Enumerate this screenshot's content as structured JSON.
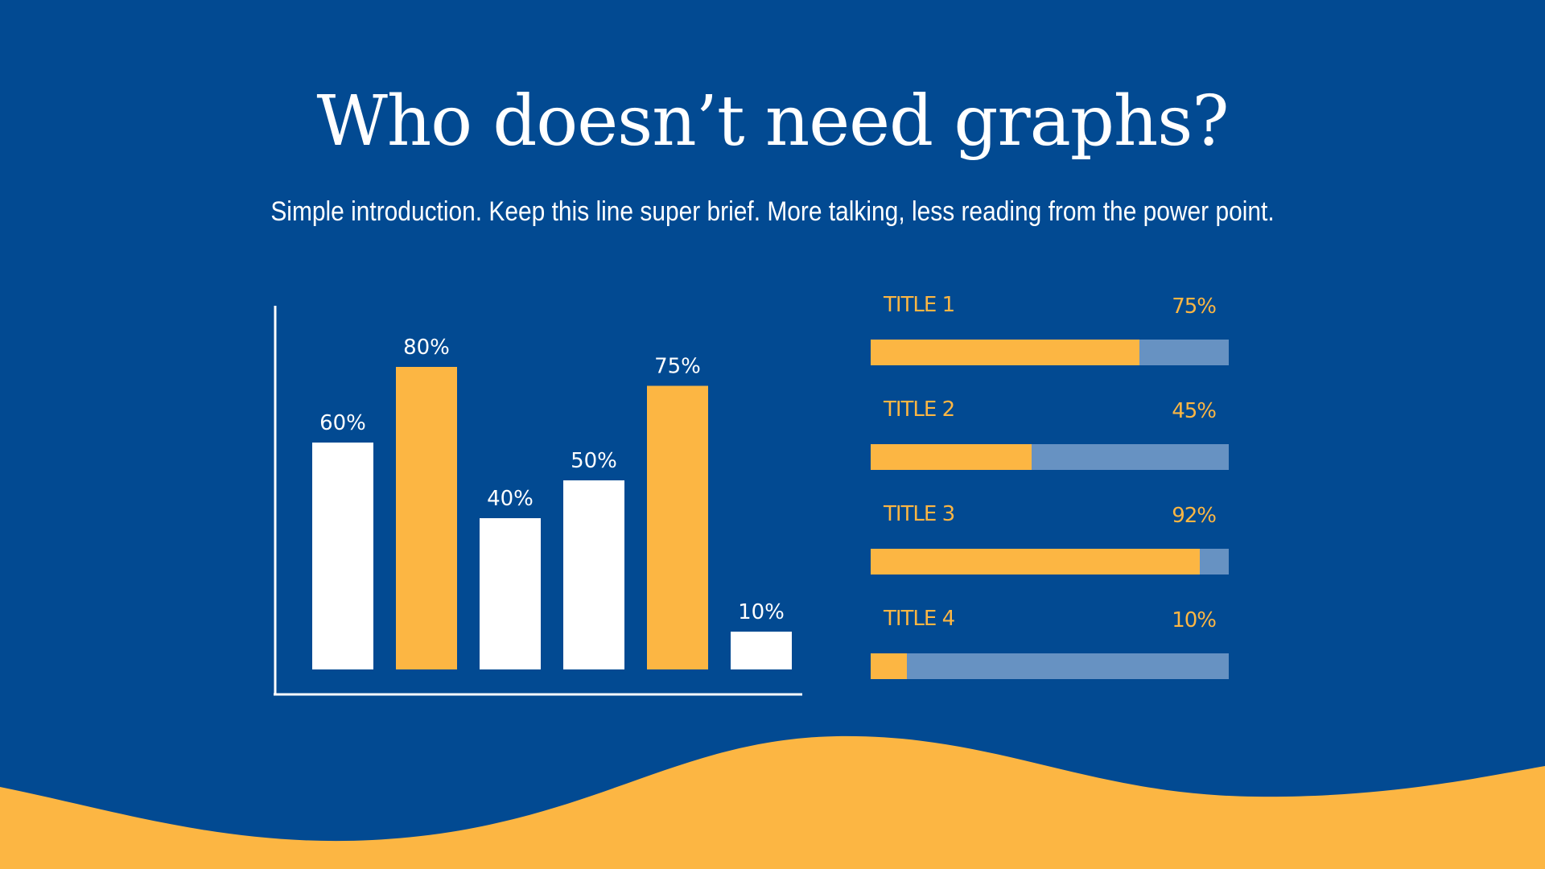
{
  "slide": {
    "title": "Who doesn’t need graphs?",
    "subtitle": "Simple introduction. Keep this line super brief. More talking, less reading from the power point.",
    "colors": {
      "background": "#024a92",
      "accent": "#fcb643",
      "white": "#ffffff",
      "track": "#6792c2"
    }
  },
  "chart_data": [
    {
      "type": "bar",
      "categories": [
        "",
        "",
        "",
        "",
        "",
        ""
      ],
      "values": [
        60,
        80,
        40,
        50,
        75,
        10
      ],
      "data_labels": [
        "60%",
        "80%",
        "40%",
        "50%",
        "75%",
        "10%"
      ],
      "bar_colors": [
        "#ffffff",
        "#fcb643",
        "#ffffff",
        "#ffffff",
        "#fcb643",
        "#ffffff"
      ],
      "title": "",
      "xlabel": "",
      "ylabel": "",
      "ylim": [
        0,
        100
      ],
      "grid": false
    },
    {
      "type": "bar",
      "orientation": "horizontal",
      "categories": [
        "TITLE 1",
        "TITLE 2",
        "TITLE 3",
        "TITLE 4"
      ],
      "values": [
        75,
        45,
        92,
        10
      ],
      "data_labels": [
        "75%",
        "45%",
        "92%",
        "10%"
      ],
      "ylim": [
        0,
        100
      ],
      "grid": false
    }
  ]
}
